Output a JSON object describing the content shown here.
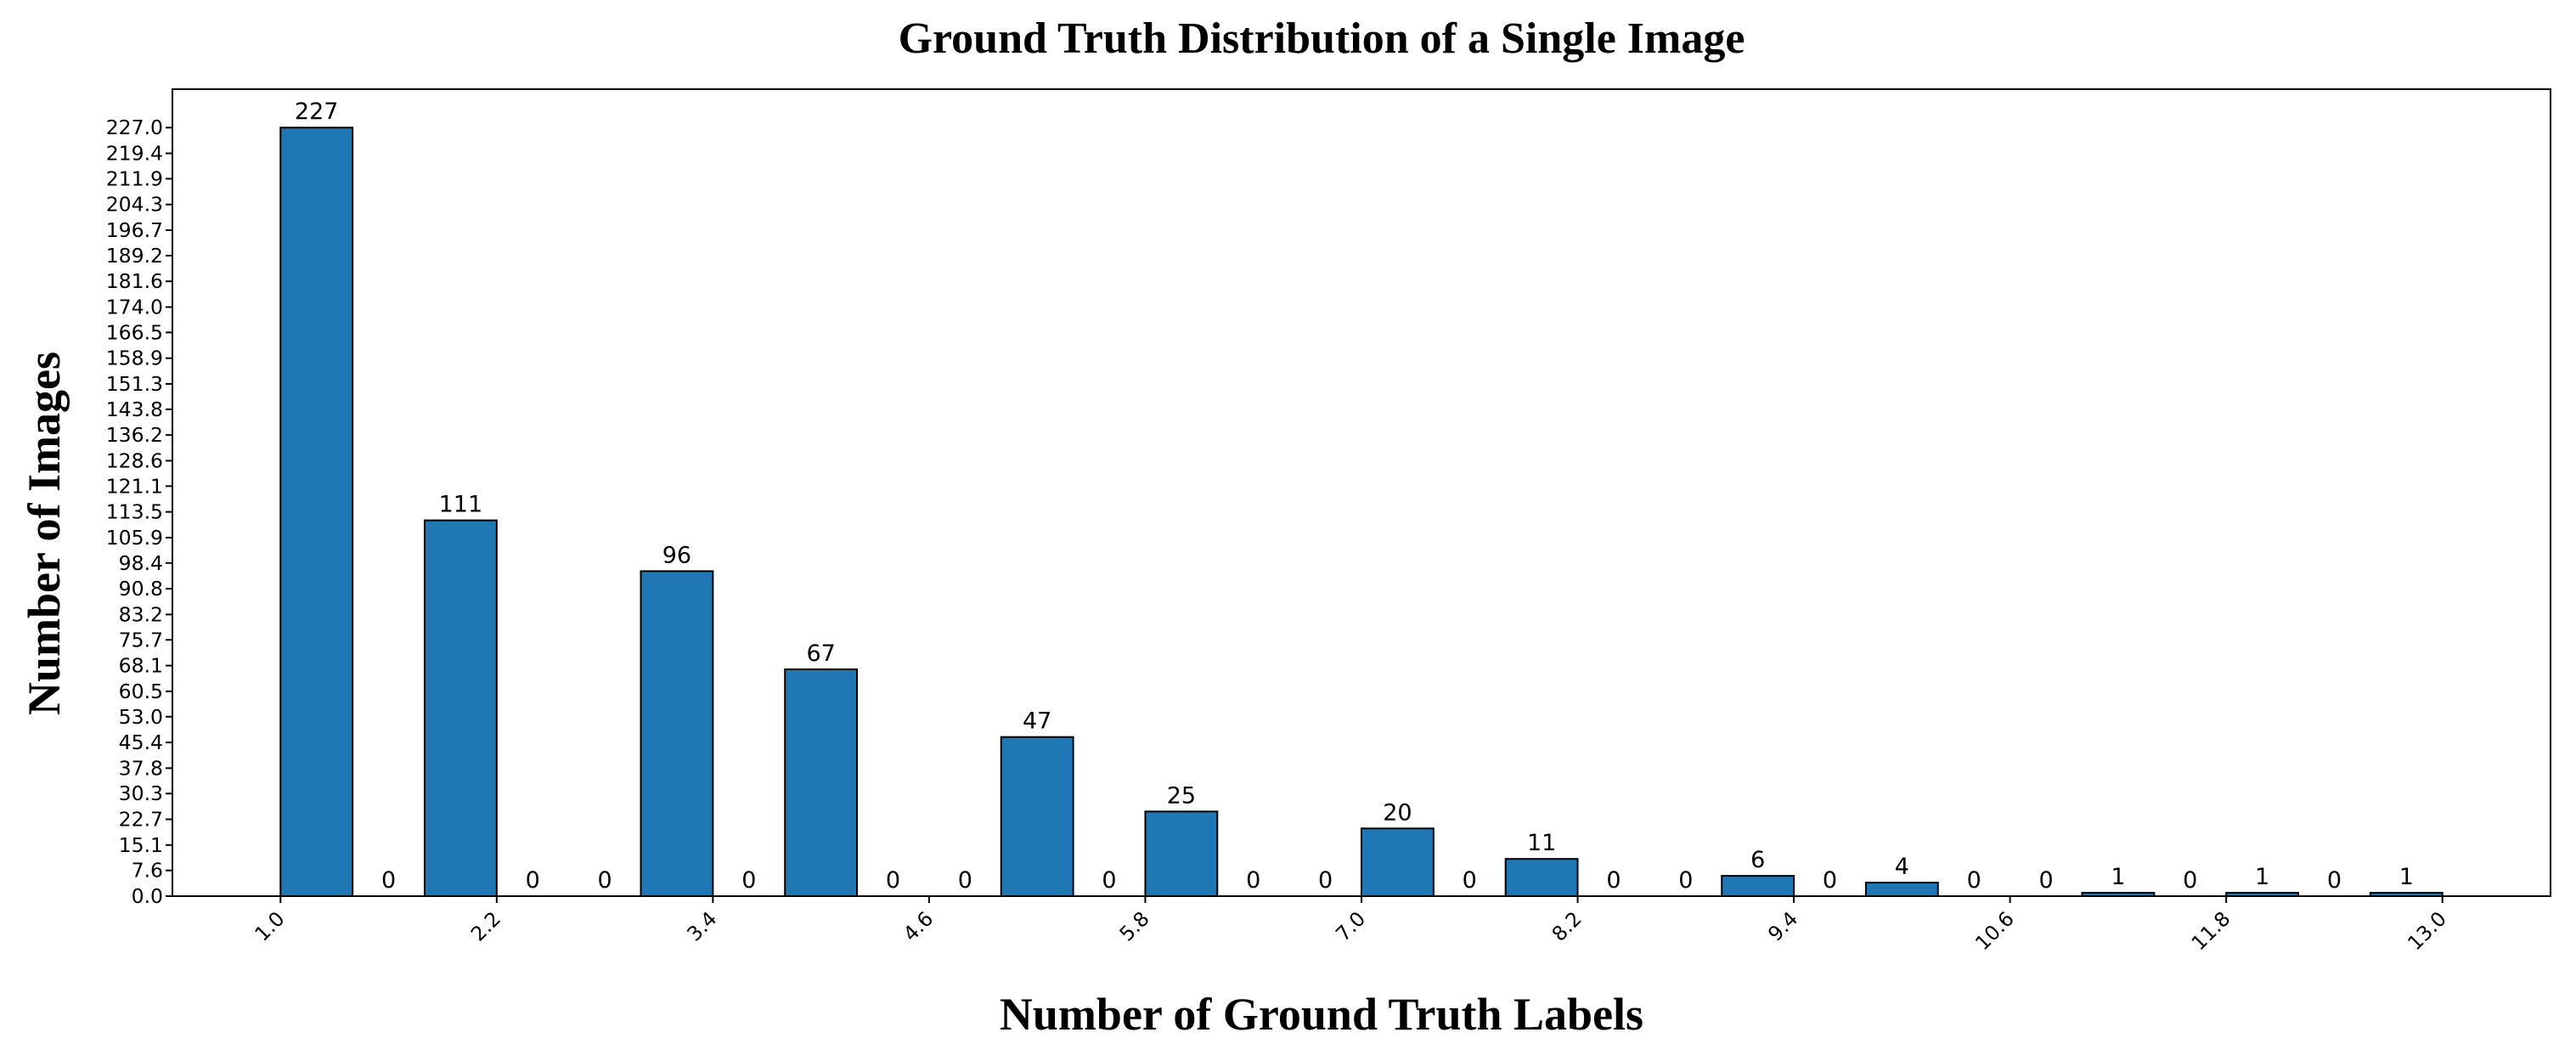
{
  "chart_data": {
    "type": "bar",
    "title": "Ground Truth Distribution of a Single Image",
    "xlabel": "Number of Ground Truth Labels",
    "ylabel": "Number of Images",
    "xlim": [
      0.4,
      13.6
    ],
    "ylim": [
      0,
      238.35
    ],
    "x_ticks": [
      "1.0",
      "2.2",
      "3.4",
      "4.6",
      "5.8",
      "7.0",
      "8.2",
      "9.4",
      "10.6",
      "11.8",
      "13.0"
    ],
    "y_ticks": [
      "0.0",
      "7.6",
      "15.1",
      "22.7",
      "30.3",
      "37.8",
      "45.4",
      "53.0",
      "60.5",
      "68.1",
      "75.7",
      "83.2",
      "90.8",
      "98.4",
      "105.9",
      "113.5",
      "121.1",
      "128.6",
      "136.2",
      "143.8",
      "151.3",
      "158.9",
      "166.5",
      "174.0",
      "181.6",
      "189.2",
      "196.7",
      "204.3",
      "211.9",
      "219.4",
      "227.0"
    ],
    "bin_width": 0.4,
    "bars": [
      {
        "x": 1.0,
        "value": 227,
        "label": "227"
      },
      {
        "x": 1.4,
        "value": 0,
        "label": "0"
      },
      {
        "x": 1.8,
        "value": 111,
        "label": "111"
      },
      {
        "x": 2.2,
        "value": 0,
        "label": "0"
      },
      {
        "x": 2.6,
        "value": 0,
        "label": "0"
      },
      {
        "x": 3.0,
        "value": 96,
        "label": "96"
      },
      {
        "x": 3.4,
        "value": 0,
        "label": "0"
      },
      {
        "x": 3.8,
        "value": 67,
        "label": "67"
      },
      {
        "x": 4.2,
        "value": 0,
        "label": "0"
      },
      {
        "x": 4.6,
        "value": 0,
        "label": "0"
      },
      {
        "x": 5.0,
        "value": 47,
        "label": "47"
      },
      {
        "x": 5.4,
        "value": 0,
        "label": "0"
      },
      {
        "x": 5.8,
        "value": 25,
        "label": "25"
      },
      {
        "x": 6.2,
        "value": 0,
        "label": "0"
      },
      {
        "x": 6.6,
        "value": 0,
        "label": "0"
      },
      {
        "x": 7.0,
        "value": 20,
        "label": "20"
      },
      {
        "x": 7.4,
        "value": 0,
        "label": "0"
      },
      {
        "x": 7.8,
        "value": 11,
        "label": "11"
      },
      {
        "x": 8.2,
        "value": 0,
        "label": "0"
      },
      {
        "x": 8.6,
        "value": 0,
        "label": "0"
      },
      {
        "x": 9.0,
        "value": 6,
        "label": "6"
      },
      {
        "x": 9.4,
        "value": 0,
        "label": "0"
      },
      {
        "x": 9.8,
        "value": 4,
        "label": "4"
      },
      {
        "x": 10.2,
        "value": 0,
        "label": "0"
      },
      {
        "x": 10.6,
        "value": 0,
        "label": "0"
      },
      {
        "x": 11.0,
        "value": 1,
        "label": "1"
      },
      {
        "x": 11.4,
        "value": 0,
        "label": "0"
      },
      {
        "x": 11.8,
        "value": 1,
        "label": "1"
      },
      {
        "x": 12.2,
        "value": 0,
        "label": "0"
      },
      {
        "x": 12.6,
        "value": 1,
        "label": "1"
      }
    ],
    "bar_color": "#1f77b4",
    "bar_edge_color": "#000000",
    "grid": false,
    "legend": "none"
  }
}
